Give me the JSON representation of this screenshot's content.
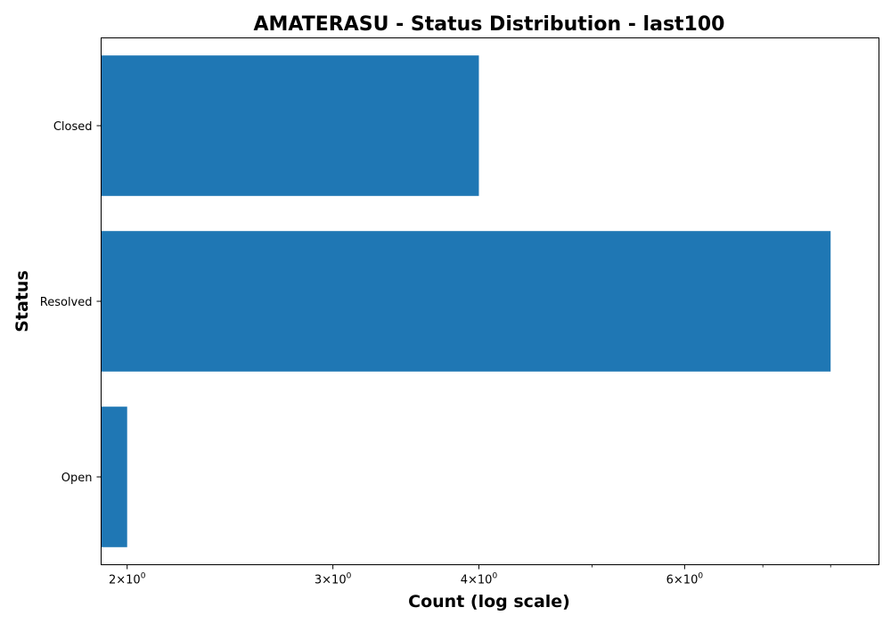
{
  "chart_data": {
    "type": "bar",
    "orientation": "horizontal",
    "title": "AMATERASU - Status Distribution - last100",
    "xlabel": "Count (log scale)",
    "ylabel": "Status",
    "x_scale": "log",
    "xlim": [
      1.9,
      8.8
    ],
    "categories": [
      "Closed",
      "Resolved",
      "Open"
    ],
    "values": [
      4,
      8,
      2
    ],
    "color": "#1f77b4",
    "major_ticks": [
      {
        "value": 2,
        "base": "2",
        "sup": "0"
      },
      {
        "value": 3,
        "base": "3",
        "sup": "0"
      },
      {
        "value": 4,
        "base": "4",
        "sup": "0"
      },
      {
        "value": 6,
        "base": "6",
        "sup": "0"
      }
    ],
    "minor_ticks": [
      5,
      7,
      8
    ],
    "grid": false,
    "legend": "none"
  }
}
